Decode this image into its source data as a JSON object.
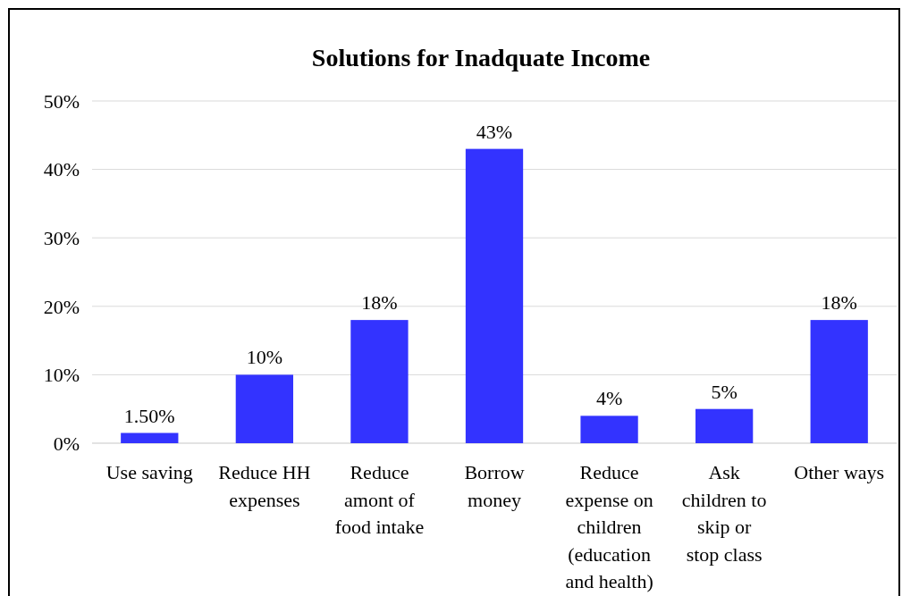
{
  "chart_data": {
    "type": "bar",
    "title": "Solutions for Inadquate Income",
    "categories": [
      "Use saving",
      "Reduce HH expenses",
      "Reduce amont of food intake",
      "Borrow money",
      "Reduce expense on children (education and health)",
      "Ask children to skip or stop class",
      "Other ways"
    ],
    "values": [
      1.5,
      10,
      18,
      43,
      4,
      5,
      18
    ],
    "value_labels": [
      "1.50%",
      "10%",
      "18%",
      "43%",
      "4%",
      "5%",
      "18%"
    ],
    "color": "#3333ff",
    "ylim": [
      0,
      50
    ],
    "yticks": [
      {
        "value": 0,
        "label": "0%"
      },
      {
        "value": 10,
        "label": "10%"
      },
      {
        "value": 20,
        "label": "20%"
      },
      {
        "value": 30,
        "label": "30%"
      },
      {
        "value": 40,
        "label": "40%"
      },
      {
        "value": 50,
        "label": "50%"
      }
    ],
    "grid": "y"
  }
}
